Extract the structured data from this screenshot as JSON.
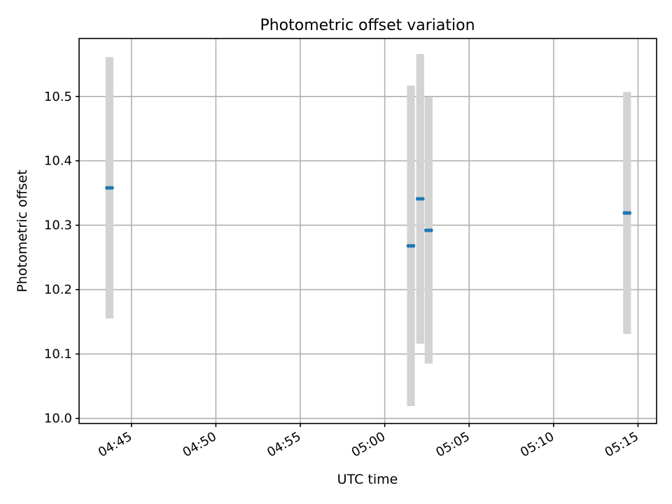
{
  "chart_data": {
    "type": "scatter",
    "title": "Photometric offset variation",
    "xlabel": "UTC time",
    "ylabel": "Photometric offset",
    "x_ticks": [
      "04:45",
      "04:50",
      "04:55",
      "05:00",
      "05:05",
      "05:10",
      "05:15"
    ],
    "x_tick_minutes": [
      285,
      290,
      295,
      300,
      305,
      310,
      315
    ],
    "y_ticks": [
      "10.0",
      "10.1",
      "10.2",
      "10.3",
      "10.4",
      "10.5"
    ],
    "y_tick_values": [
      10.0,
      10.1,
      10.2,
      10.3,
      10.4,
      10.5
    ],
    "xlim_minutes": [
      281.9,
      316.1
    ],
    "ylim": [
      9.992,
      10.59
    ],
    "grid": true,
    "colors": {
      "marker": "#1f77b4",
      "error_band": "#d3d3d3"
    },
    "points": [
      {
        "t_minutes": 283.55,
        "y": 10.358,
        "err": 0.203
      },
      {
        "t_minutes": 283.7,
        "y": 10.358,
        "err": 0.203
      },
      {
        "t_minutes": 283.85,
        "y": 10.358,
        "err": 0.203
      },
      {
        "t_minutes": 301.4,
        "y": 10.268,
        "err": 0.249
      },
      {
        "t_minutes": 301.55,
        "y": 10.268,
        "err": 0.249
      },
      {
        "t_minutes": 301.7,
        "y": 10.268,
        "err": 0.249
      },
      {
        "t_minutes": 301.95,
        "y": 10.341,
        "err": 0.225
      },
      {
        "t_minutes": 302.1,
        "y": 10.341,
        "err": 0.225
      },
      {
        "t_minutes": 302.25,
        "y": 10.341,
        "err": 0.225
      },
      {
        "t_minutes": 302.45,
        "y": 10.292,
        "err": 0.207
      },
      {
        "t_minutes": 302.6,
        "y": 10.292,
        "err": 0.207
      },
      {
        "t_minutes": 302.75,
        "y": 10.292,
        "err": 0.207
      },
      {
        "t_minutes": 314.2,
        "y": 10.319,
        "err": 0.188
      },
      {
        "t_minutes": 314.35,
        "y": 10.319,
        "err": 0.188
      },
      {
        "t_minutes": 314.5,
        "y": 10.319,
        "err": 0.188
      }
    ]
  }
}
